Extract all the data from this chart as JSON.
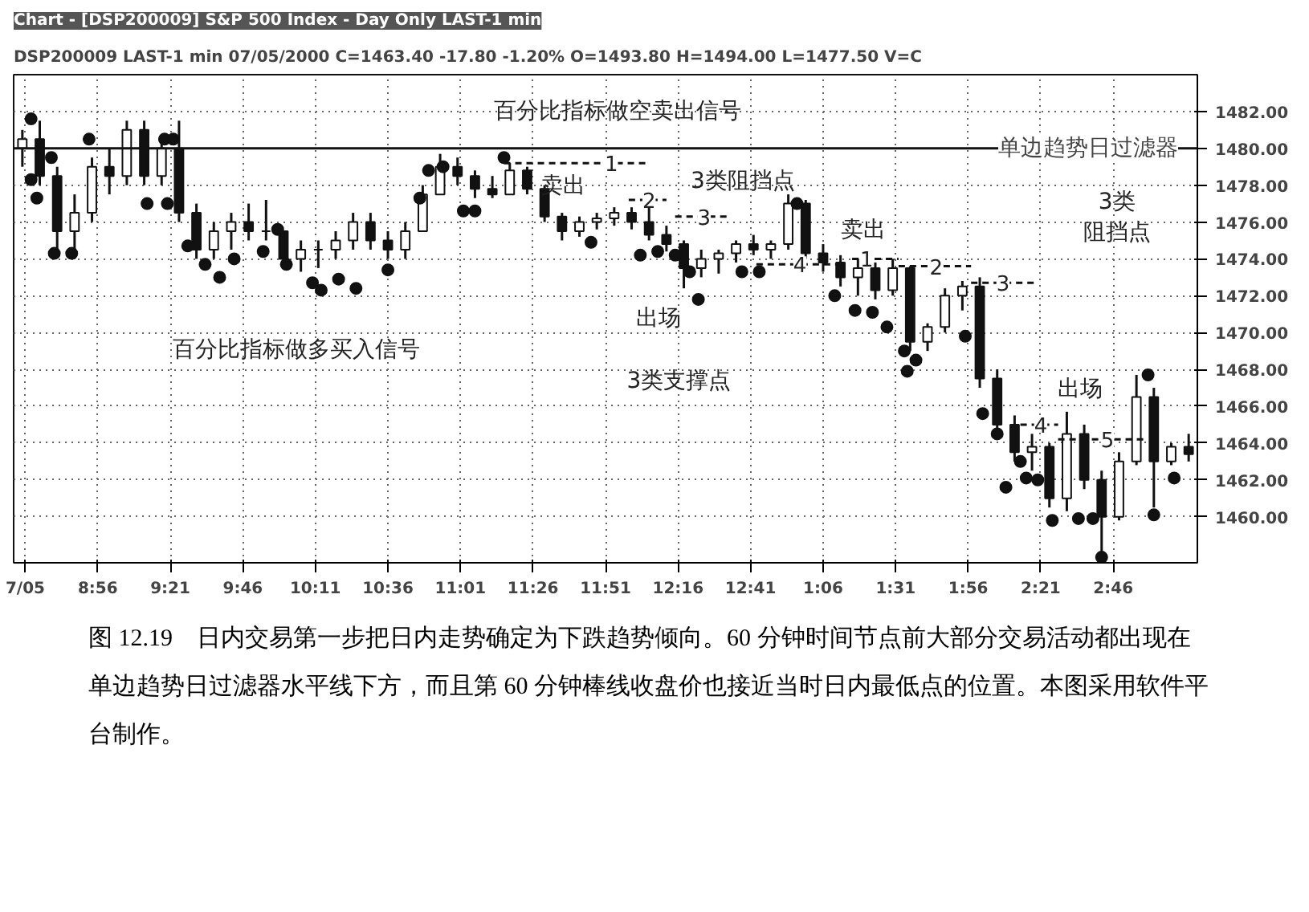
{
  "chart_data": {
    "type": "candlestick",
    "title": "Chart - [DSP200009] S&P 500 Index - Day Only LAST-1 min",
    "subtitle": "DSP200009 LAST-1 min   07/05/2000   C=1463.40  -17.80  -1.20%  O=1493.80  H=1494.00  L=1477.50  V=C",
    "color": "#111111",
    "x": [
      "2000-07-05T08:30",
      "2000-07-05T08:36",
      "2000-07-05T08:42",
      "2000-07-05T08:48",
      "2000-07-05T08:54",
      "2000-07-05T09:00",
      "2000-07-05T09:06",
      "2000-07-05T09:12",
      "2000-07-05T09:18",
      "2000-07-05T09:24",
      "2000-07-05T09:30",
      "2000-07-05T09:36",
      "2000-07-05T09:42",
      "2000-07-05T09:48",
      "2000-07-05T09:54",
      "2000-07-05T10:00",
      "2000-07-05T10:06",
      "2000-07-05T10:12",
      "2000-07-05T10:18",
      "2000-07-05T10:24",
      "2000-07-05T10:30",
      "2000-07-05T10:36",
      "2000-07-05T10:42",
      "2000-07-05T10:48",
      "2000-07-05T10:54",
      "2000-07-05T11:00",
      "2000-07-05T11:06",
      "2000-07-05T11:12",
      "2000-07-05T11:18",
      "2000-07-05T11:24",
      "2000-07-05T11:30",
      "2000-07-05T11:36",
      "2000-07-05T11:42",
      "2000-07-05T11:48",
      "2000-07-05T11:54",
      "2000-07-05T12:00",
      "2000-07-05T12:06",
      "2000-07-05T12:12",
      "2000-07-05T12:18",
      "2000-07-05T12:24",
      "2000-07-05T12:30",
      "2000-07-05T12:36",
      "2000-07-05T12:42",
      "2000-07-05T12:48",
      "2000-07-05T12:54",
      "2000-07-05T13:00",
      "2000-07-05T13:06",
      "2000-07-05T13:12",
      "2000-07-05T13:18",
      "2000-07-05T13:24",
      "2000-07-05T13:30",
      "2000-07-05T13:36",
      "2000-07-05T13:42",
      "2000-07-05T13:48",
      "2000-07-05T13:54",
      "2000-07-05T14:00",
      "2000-07-05T14:06",
      "2000-07-05T14:12",
      "2000-07-05T14:18",
      "2000-07-05T14:24",
      "2000-07-05T14:30",
      "2000-07-05T14:36",
      "2000-07-05T14:42",
      "2000-07-05T14:48",
      "2000-07-05T14:54",
      "2000-07-05T15:00",
      "2000-07-05T15:06",
      "2000-07-05T15:12"
    ],
    "ohlc": [
      [
        1480,
        1481,
        1479,
        1480.5
      ],
      [
        1480.5,
        1481.5,
        1478,
        1478.5
      ],
      [
        1478.5,
        1479,
        1474.5,
        1475.5
      ],
      [
        1475.5,
        1477.5,
        1474,
        1476.5
      ],
      [
        1476.5,
        1479.5,
        1476,
        1479
      ],
      [
        1479,
        1480,
        1477.5,
        1478.5
      ],
      [
        1478.5,
        1481.5,
        1478,
        1481
      ],
      [
        1481,
        1481.5,
        1478,
        1478.5
      ],
      [
        1478.5,
        1480.5,
        1478,
        1480
      ],
      [
        1480,
        1481.5,
        1476,
        1476.5
      ],
      [
        1476.5,
        1477,
        1474,
        1474.5
      ],
      [
        1474.5,
        1476,
        1474,
        1475.5
      ],
      [
        1475.5,
        1476.5,
        1474.5,
        1476
      ],
      [
        1476,
        1477,
        1475,
        1475.5
      ],
      [
        1475.5,
        1477.2,
        1475,
        1475.5
      ],
      [
        1475.5,
        1475.5,
        1473.5,
        1474
      ],
      [
        1474,
        1475,
        1473.3,
        1474.5
      ],
      [
        1474.5,
        1475,
        1473.5,
        1474.5
      ],
      [
        1474.5,
        1475.5,
        1474,
        1475
      ],
      [
        1475,
        1476.5,
        1474.5,
        1476
      ],
      [
        1476,
        1476.5,
        1474.5,
        1475
      ],
      [
        1475,
        1475.5,
        1474,
        1474.5
      ],
      [
        1474.5,
        1476,
        1474,
        1475.5
      ],
      [
        1475.5,
        1478,
        1475.5,
        1477.5
      ],
      [
        1477.5,
        1479.7,
        1477.5,
        1479
      ],
      [
        1479,
        1479.5,
        1478,
        1478.5
      ],
      [
        1478.5,
        1478.8,
        1477.3,
        1477.8
      ],
      [
        1477.8,
        1478.5,
        1477.3,
        1477.5
      ],
      [
        1477.5,
        1479.2,
        1477.5,
        1478.8
      ],
      [
        1478.8,
        1479,
        1477.5,
        1477.8
      ],
      [
        1477.8,
        1478,
        1476,
        1476.3
      ],
      [
        1476.3,
        1476.5,
        1475,
        1475.5
      ],
      [
        1475.5,
        1476.3,
        1475.2,
        1476
      ],
      [
        1476,
        1476.5,
        1475.6,
        1476.2
      ],
      [
        1476.2,
        1476.8,
        1475.8,
        1476.5
      ],
      [
        1476.5,
        1476.8,
        1475.6,
        1476
      ],
      [
        1476,
        1476.8,
        1475,
        1475.3
      ],
      [
        1475.3,
        1475.8,
        1474.4,
        1474.8
      ],
      [
        1474.8,
        1475,
        1472.4,
        1473.5
      ],
      [
        1473.5,
        1474.5,
        1473,
        1474
      ],
      [
        1474,
        1474.5,
        1473.2,
        1474.3
      ],
      [
        1474.3,
        1475,
        1473.8,
        1474.8
      ],
      [
        1474.8,
        1475.3,
        1474.2,
        1474.5
      ],
      [
        1474.5,
        1475,
        1474,
        1474.8
      ],
      [
        1474.8,
        1477.5,
        1474.5,
        1477
      ],
      [
        1477,
        1477.2,
        1474,
        1474.3
      ],
      [
        1474.3,
        1474.8,
        1473.3,
        1473.8
      ],
      [
        1473.8,
        1474.2,
        1472.5,
        1473
      ],
      [
        1473,
        1474,
        1472,
        1473.5
      ],
      [
        1473.5,
        1473.8,
        1471.8,
        1472.3
      ],
      [
        1472.3,
        1474,
        1472,
        1473.5
      ],
      [
        1473.5,
        1473.6,
        1469,
        1469.5
      ],
      [
        1469.5,
        1470.5,
        1469,
        1470.3
      ],
      [
        1470.3,
        1472.4,
        1470,
        1472
      ],
      [
        1472,
        1472.8,
        1471.2,
        1472.5
      ],
      [
        1472.5,
        1473,
        1467,
        1467.5
      ],
      [
        1467.5,
        1468,
        1464.5,
        1465
      ],
      [
        1465,
        1465.5,
        1463,
        1463.5
      ],
      [
        1463.5,
        1464.5,
        1462.5,
        1463.8
      ],
      [
        1463.8,
        1464,
        1460.5,
        1461
      ],
      [
        1461,
        1465.7,
        1460.3,
        1464.5
      ],
      [
        1464.5,
        1465,
        1461.5,
        1462
      ],
      [
        1462,
        1462.5,
        1458,
        1460
      ],
      [
        1460,
        1463.5,
        1459.8,
        1463
      ],
      [
        1463,
        1467.7,
        1462.8,
        1466.5
      ],
      [
        1466.5,
        1467,
        1460.5,
        1463
      ],
      [
        1463,
        1464,
        1462.8,
        1463.8
      ],
      [
        1463.8,
        1464.5,
        1463,
        1463.4
      ]
    ],
    "series": [
      {
        "type": "scatter",
        "color": "#111111",
        "marker": "circle",
        "x": [
          "2000-07-05T08:33",
          "2000-07-05T08:33",
          "2000-07-05T08:35",
          "2000-07-05T08:40",
          "2000-07-05T08:41",
          "2000-07-05T08:47",
          "2000-07-05T08:53",
          "2000-07-05T09:13",
          "2000-07-05T09:19",
          "2000-07-05T09:22",
          "2000-07-05T09:20",
          "2000-07-05T09:27",
          "2000-07-05T09:33",
          "2000-07-05T09:38",
          "2000-07-05T09:43",
          "2000-07-05T09:53",
          "2000-07-05T09:58",
          "2000-07-05T10:01",
          "2000-07-05T10:10",
          "2000-07-05T10:13",
          "2000-07-05T10:19",
          "2000-07-05T10:25",
          "2000-07-05T10:36",
          "2000-07-05T10:47",
          "2000-07-05T10:50",
          "2000-07-05T10:55",
          "2000-07-05T11:16",
          "2000-07-05T11:02",
          "2000-07-05T11:06",
          "2000-07-05T11:46",
          "2000-07-05T12:03",
          "2000-07-05T12:09",
          "2000-07-05T12:15",
          "2000-07-05T12:20",
          "2000-07-05T12:23",
          "2000-07-05T12:38",
          "2000-07-05T12:44",
          "2000-07-05T12:57",
          "2000-07-05T13:10",
          "2000-07-05T13:17",
          "2000-07-05T13:23",
          "2000-07-05T13:28",
          "2000-07-05T13:34",
          "2000-07-05T13:38",
          "2000-07-05T13:35",
          "2000-07-05T13:55",
          "2000-07-05T14:01",
          "2000-07-05T14:06",
          "2000-07-05T14:09",
          "2000-07-05T14:14",
          "2000-07-05T14:16",
          "2000-07-05T14:20",
          "2000-07-05T14:25",
          "2000-07-05T14:34",
          "2000-07-05T14:39",
          "2000-07-05T14:42",
          "2000-07-05T14:58",
          "2000-07-05T15:00",
          "2000-07-05T15:07"
        ],
        "values": [
          1481.6,
          1478.3,
          1477.3,
          1479.5,
          1474.3,
          1474.3,
          1480.5,
          1477,
          1480.5,
          1480.5,
          1477,
          1474.7,
          1473.7,
          1473,
          1474,
          1474.4,
          1475.6,
          1473.7,
          1472.7,
          1472.3,
          1472.9,
          1472.4,
          1473.4,
          1477.3,
          1478.8,
          1479,
          1479.5,
          1476.6,
          1476.6,
          1474.9,
          1474.2,
          1474.4,
          1474.2,
          1473.3,
          1471.8,
          1473.3,
          1473.3,
          1477,
          1472,
          1471.2,
          1471.1,
          1470.3,
          1469,
          1468.5,
          1467.9,
          1469.8,
          1465.6,
          1464.5,
          1461.6,
          1463,
          1462.1,
          1462,
          1459.8,
          1459.9,
          1459.9,
          1457.8,
          1467.7,
          1460.1,
          1462.1
        ]
      },
      {
        "type": "line",
        "color": "#111111",
        "line_style": "dashed",
        "x": [
          "2000-07-05T11:16",
          "2000-07-05T12:06"
        ],
        "values": [
          1479.2,
          1479.2
        ]
      },
      {
        "type": "line",
        "color": "#111111",
        "line_style": "dashed",
        "x": [
          "2000-07-05T11:59",
          "2000-07-05T12:12"
        ],
        "values": [
          1477.2,
          1477.2
        ]
      },
      {
        "type": "line",
        "color": "#111111",
        "line_style": "dashed",
        "x": [
          "2000-07-05T12:15",
          "2000-07-05T12:34"
        ],
        "values": [
          1476.3,
          1476.3
        ]
      },
      {
        "type": "line",
        "color": "#111111",
        "line_style": "dashed",
        "x": [
          "2000-07-05T12:43",
          "2000-07-05T13:14"
        ],
        "values": [
          1473.7,
          1473.7
        ]
      },
      {
        "type": "line",
        "color": "#111111",
        "line_style": "dashed",
        "x": [
          "2000-07-05T13:16",
          "2000-07-05T13:32"
        ],
        "values": [
          1474.0,
          1474.0
        ]
      },
      {
        "type": "line",
        "color": "#111111",
        "line_style": "dashed",
        "x": [
          "2000-07-05T13:32",
          "2000-07-05T13:57"
        ],
        "values": [
          1473.6,
          1473.6
        ]
      },
      {
        "type": "line",
        "color": "#111111",
        "line_style": "dashed",
        "x": [
          "2000-07-05T13:57",
          "2000-07-05T14:20"
        ],
        "values": [
          1472.7,
          1472.7
        ]
      },
      {
        "type": "line",
        "color": "#111111",
        "line_style": "dashed",
        "x": [
          "2000-07-05T14:14",
          "2000-07-05T14:27"
        ],
        "values": [
          1465.0,
          1465.0
        ]
      },
      {
        "type": "line",
        "color": "#111111",
        "line_style": "dashed",
        "x": [
          "2000-07-05T14:27",
          "2000-07-05T14:57"
        ],
        "values": [
          1464.2,
          1464.2
        ]
      }
    ],
    "ref_lines": [
      {
        "axis": "y",
        "value": 1480,
        "label": "单边趋势日过滤器",
        "color": "#111111"
      }
    ],
    "annotations": [
      {
        "text": "1",
        "x": "2000-07-05T11:53",
        "y": 1479.2
      },
      {
        "text": "2",
        "x": "2000-07-05T12:06",
        "y": 1477.2
      },
      {
        "text": "3",
        "x": "2000-07-05T12:25",
        "y": 1476.3
      },
      {
        "text": "4",
        "x": "2000-07-05T12:58",
        "y": 1473.7
      },
      {
        "text": "1",
        "x": "2000-07-05T13:21",
        "y": 1474.0
      },
      {
        "text": "2",
        "x": "2000-07-05T13:45",
        "y": 1473.6
      },
      {
        "text": "3",
        "x": "2000-07-05T14:08",
        "y": 1472.7
      },
      {
        "text": "4",
        "x": "2000-07-05T14:21",
        "y": 1465.0
      },
      {
        "text": "5",
        "x": "2000-07-05T14:44",
        "y": 1464.2
      },
      "百分比指标做空卖出信号",
      "卖出",
      "3类阻挡点",
      "出场",
      "3类支撑点",
      "百分比指标做多买入信号",
      "卖出",
      "3类阻挡点",
      "出场",
      "图 12.19　日内交易第一步把日内走势确定为下跌趋势倾向。60 分钟时间节点前大部分交易活动都出现在单边趋势日过滤器水平线下方，而且第 60 分钟棒线收盘价也接近当时日内最低点的位置。本图采用软件平台制作。"
    ],
    "xlim": [
      "2000-07-05T08:27",
      "2000-07-05T15:15"
    ],
    "ylim": [
      1457.5,
      1484
    ],
    "xticks": [
      {
        "value": "2000-07-05T08:31",
        "label": "7/05"
      },
      {
        "value": "2000-07-05T08:56",
        "label": "8:56"
      },
      {
        "value": "2000-07-05T09:21",
        "label": "9:21"
      },
      {
        "value": "2000-07-05T09:46",
        "label": "9:46"
      },
      {
        "value": "2000-07-05T10:11",
        "label": "10:11"
      },
      {
        "value": "2000-07-05T10:36",
        "label": "10:36"
      },
      {
        "value": "2000-07-05T11:01",
        "label": "11:01"
      },
      {
        "value": "2000-07-05T11:26",
        "label": "11:26"
      },
      {
        "value": "2000-07-05T11:51",
        "label": "11:51"
      },
      {
        "value": "2000-07-05T12:16",
        "label": "12:16"
      },
      {
        "value": "2000-07-05T12:41",
        "label": "12:41"
      },
      {
        "value": "2000-07-05T13:06",
        "label": "1:06"
      },
      {
        "value": "2000-07-05T13:31",
        "label": "1:31"
      },
      {
        "value": "2000-07-05T13:56",
        "label": "1:56"
      },
      {
        "value": "2000-07-05T14:21",
        "label": "2:21"
      },
      {
        "value": "2000-07-05T14:46",
        "label": "2:46"
      }
    ],
    "yticks": [
      {
        "value": 1460,
        "label": "1460.00"
      },
      {
        "value": 1462,
        "label": "1462.00"
      },
      {
        "value": 1464,
        "label": "1464.00"
      },
      {
        "value": 1466,
        "label": "1466.00"
      },
      {
        "value": 1468,
        "label": "1468.00"
      },
      {
        "value": 1470,
        "label": "1470.00"
      },
      {
        "value": 1472,
        "label": "1472.00"
      },
      {
        "value": 1474,
        "label": "1474.00"
      },
      {
        "value": 1476,
        "label": "1476.00"
      },
      {
        "value": 1478,
        "label": "1478.00"
      },
      {
        "value": 1480,
        "label": "1480.00"
      },
      {
        "value": 1482,
        "label": "1482.00"
      }
    ],
    "grid": true
  }
}
